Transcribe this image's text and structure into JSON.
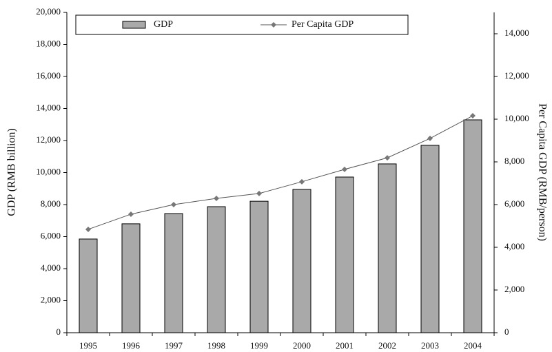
{
  "chart_data": {
    "type": "bar-line",
    "y_label": "GDP (RMB billion)",
    "y2_label": "Per Capita GDP (RMB/person)",
    "categories": [
      "1995",
      "1996",
      "1997",
      "1998",
      "1999",
      "2000",
      "2001",
      "2002",
      "2003",
      "2004"
    ],
    "series": [
      {
        "name": "GDP",
        "type": "bar",
        "color": "#a9a9a9",
        "values": [
          5850,
          6800,
          7440,
          7870,
          8210,
          8950,
          9720,
          10540,
          11700,
          13290
        ]
      },
      {
        "name": "Per Capita GDP",
        "type": "line",
        "axis": "y2",
        "color": "#777777",
        "values": [
          4840,
          5550,
          6000,
          6290,
          6520,
          7070,
          7650,
          8190,
          9100,
          10160
        ]
      }
    ],
    "ylim": [
      0,
      20000
    ],
    "yticks": [
      0,
      {
        "value": 2000,
        "label": "2,000"
      },
      {
        "value": 4000,
        "label": "4,000"
      },
      {
        "value": 6000,
        "label": "6,000"
      },
      {
        "value": 8000,
        "label": "8,000"
      },
      {
        "value": 10000,
        "label": "10,000"
      },
      {
        "value": 12000,
        "label": "12,000"
      },
      {
        "value": 14000,
        "label": "14,000"
      },
      {
        "value": 16000,
        "label": "16,000"
      },
      {
        "value": 18000,
        "label": "18,000"
      },
      {
        "value": 20000,
        "label": "20,000"
      }
    ],
    "y2lim": [
      0,
      15000
    ],
    "y2ticks": [
      0,
      {
        "value": 2000,
        "label": "2,000"
      },
      {
        "value": 4000,
        "label": "4,000"
      },
      {
        "value": 6000,
        "label": "6,000"
      },
      {
        "value": 8000,
        "label": "8,000"
      },
      {
        "value": 10000,
        "label": "10,000"
      },
      {
        "value": 12000,
        "label": "12,000"
      },
      {
        "value": 14000,
        "label": "14,000"
      }
    ],
    "legend": "top"
  }
}
